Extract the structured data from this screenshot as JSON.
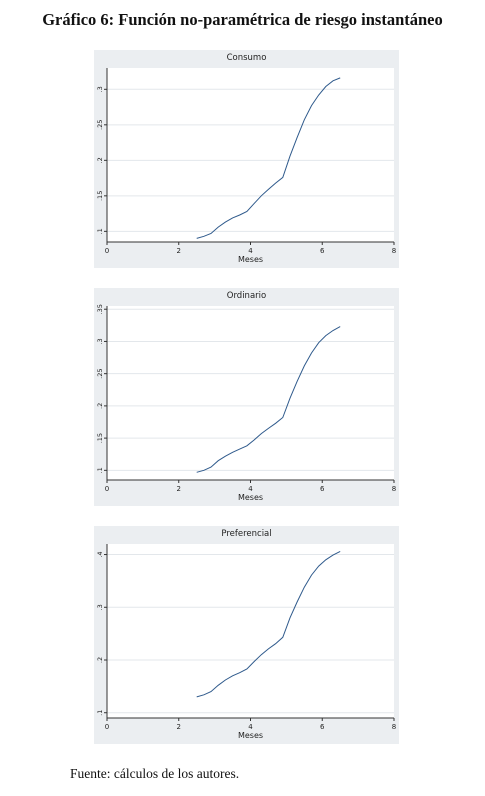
{
  "page": {
    "title": "Gráfico 6: Función no-paramétrica de riesgo instantáneo",
    "source": "Fuente: cálculos de los autores."
  },
  "style": {
    "line_color": "#2f5a8c",
    "panel_bg": "#ebeef1",
    "plot_bg": "#ffffff",
    "grid_color": "#e3e7eb"
  },
  "chart_data": [
    {
      "type": "line",
      "title": "Consumo",
      "xlabel": "Meses",
      "ylabel": "",
      "xlim": [
        0,
        8
      ],
      "ylim": [
        0.085,
        0.33
      ],
      "xticks": [
        0,
        2,
        4,
        6,
        8
      ],
      "xtick_labels": [
        "0",
        "2",
        "4",
        "6",
        "8"
      ],
      "yticks": [
        0.1,
        0.15,
        0.2,
        0.25,
        0.3
      ],
      "ytick_labels": [
        ".1",
        ".15",
        ".2",
        ".25",
        ".3"
      ],
      "grid": true,
      "series": [
        {
          "x": [
            2.5,
            2.7,
            2.9,
            3.1,
            3.3,
            3.5,
            3.7,
            3.9,
            4.1,
            4.3,
            4.5,
            4.7,
            4.9,
            5.1,
            5.3,
            5.5,
            5.7,
            5.9,
            6.1,
            6.3,
            6.5
          ],
          "y": [
            0.09,
            0.093,
            0.097,
            0.106,
            0.113,
            0.119,
            0.123,
            0.128,
            0.139,
            0.15,
            0.159,
            0.168,
            0.176,
            0.206,
            0.232,
            0.257,
            0.277,
            0.292,
            0.304,
            0.312,
            0.316
          ]
        }
      ]
    },
    {
      "type": "line",
      "title": "Ordinario",
      "xlabel": "Meses",
      "ylabel": "",
      "xlim": [
        0,
        8
      ],
      "ylim": [
        0.085,
        0.355
      ],
      "xticks": [
        0,
        2,
        4,
        6,
        8
      ],
      "xtick_labels": [
        "0",
        "2",
        "4",
        "6",
        "8"
      ],
      "yticks": [
        0.1,
        0.15,
        0.2,
        0.25,
        0.3,
        0.35
      ],
      "ytick_labels": [
        ".1",
        ".15",
        ".2",
        ".25",
        ".3",
        ".35"
      ],
      "grid": true,
      "series": [
        {
          "x": [
            2.5,
            2.7,
            2.9,
            3.1,
            3.3,
            3.5,
            3.7,
            3.9,
            4.1,
            4.3,
            4.5,
            4.7,
            4.9,
            5.1,
            5.3,
            5.5,
            5.7,
            5.9,
            6.1,
            6.3,
            6.5
          ],
          "y": [
            0.097,
            0.1,
            0.105,
            0.115,
            0.122,
            0.128,
            0.133,
            0.138,
            0.147,
            0.157,
            0.165,
            0.173,
            0.182,
            0.212,
            0.238,
            0.262,
            0.282,
            0.298,
            0.309,
            0.317,
            0.323
          ]
        }
      ]
    },
    {
      "type": "line",
      "title": "Preferencial",
      "xlabel": "Meses",
      "ylabel": "",
      "xlim": [
        0,
        8
      ],
      "ylim": [
        0.09,
        0.42
      ],
      "xticks": [
        0,
        2,
        4,
        6,
        8
      ],
      "xtick_labels": [
        "0",
        "2",
        "4",
        "6",
        "8"
      ],
      "yticks": [
        0.1,
        0.2,
        0.3,
        0.4
      ],
      "ytick_labels": [
        ".1",
        ".2",
        ".3",
        ".4"
      ],
      "grid": true,
      "series": [
        {
          "x": [
            2.5,
            2.7,
            2.9,
            3.1,
            3.3,
            3.5,
            3.7,
            3.9,
            4.1,
            4.3,
            4.5,
            4.7,
            4.9,
            5.1,
            5.3,
            5.5,
            5.7,
            5.9,
            6.1,
            6.3,
            6.5
          ],
          "y": [
            0.13,
            0.134,
            0.14,
            0.152,
            0.162,
            0.17,
            0.176,
            0.183,
            0.197,
            0.21,
            0.221,
            0.231,
            0.243,
            0.28,
            0.31,
            0.338,
            0.361,
            0.378,
            0.39,
            0.399,
            0.406
          ]
        }
      ]
    }
  ]
}
